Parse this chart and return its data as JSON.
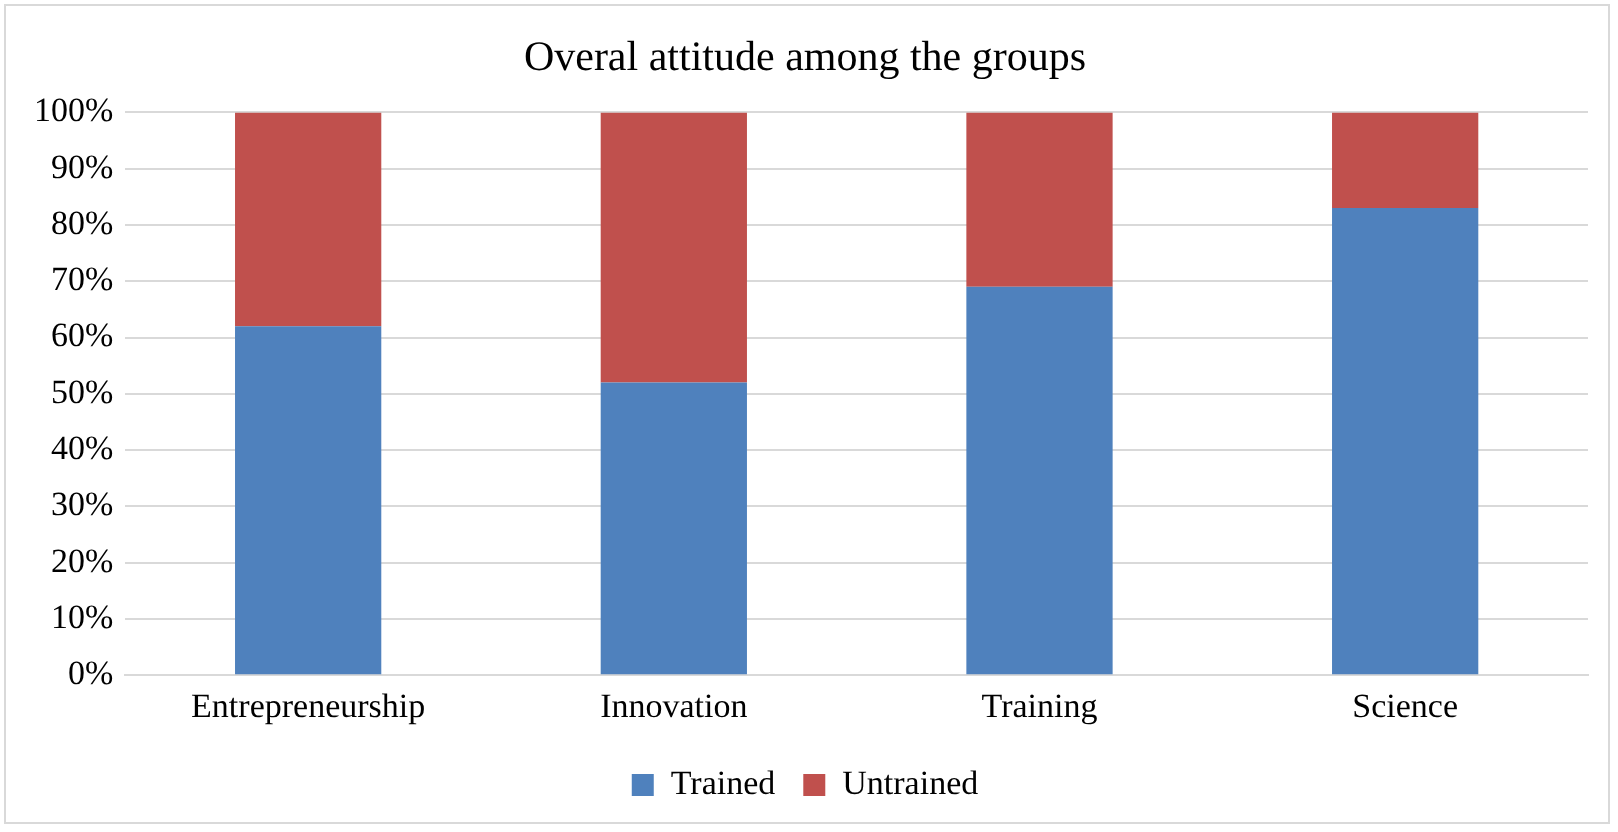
{
  "chart_data": {
    "type": "bar",
    "title": "Overal attitude among the groups",
    "categories": [
      "Entrepreneurship",
      "Innovation",
      "Training",
      "Science"
    ],
    "stacked": true,
    "series": [
      {
        "name": "Trained",
        "color": "#4f81bd",
        "values": [
          62,
          52,
          69,
          83
        ]
      },
      {
        "name": "Untrained",
        "color": "#c0504d",
        "values": [
          38,
          48,
          31,
          17
        ]
      }
    ],
    "ylim": [
      0,
      100
    ],
    "yticks": [
      {
        "value": 0,
        "label": "0%"
      },
      {
        "value": 10,
        "label": "10%"
      },
      {
        "value": 20,
        "label": "20%"
      },
      {
        "value": 30,
        "label": "30%"
      },
      {
        "value": 40,
        "label": "40%"
      },
      {
        "value": 50,
        "label": "50%"
      },
      {
        "value": 60,
        "label": "60%"
      },
      {
        "value": 70,
        "label": "70%"
      },
      {
        "value": 80,
        "label": "80%"
      },
      {
        "value": 90,
        "label": "90%"
      },
      {
        "value": 100,
        "label": "100%"
      }
    ],
    "grid": "y",
    "legend": "bottom"
  }
}
